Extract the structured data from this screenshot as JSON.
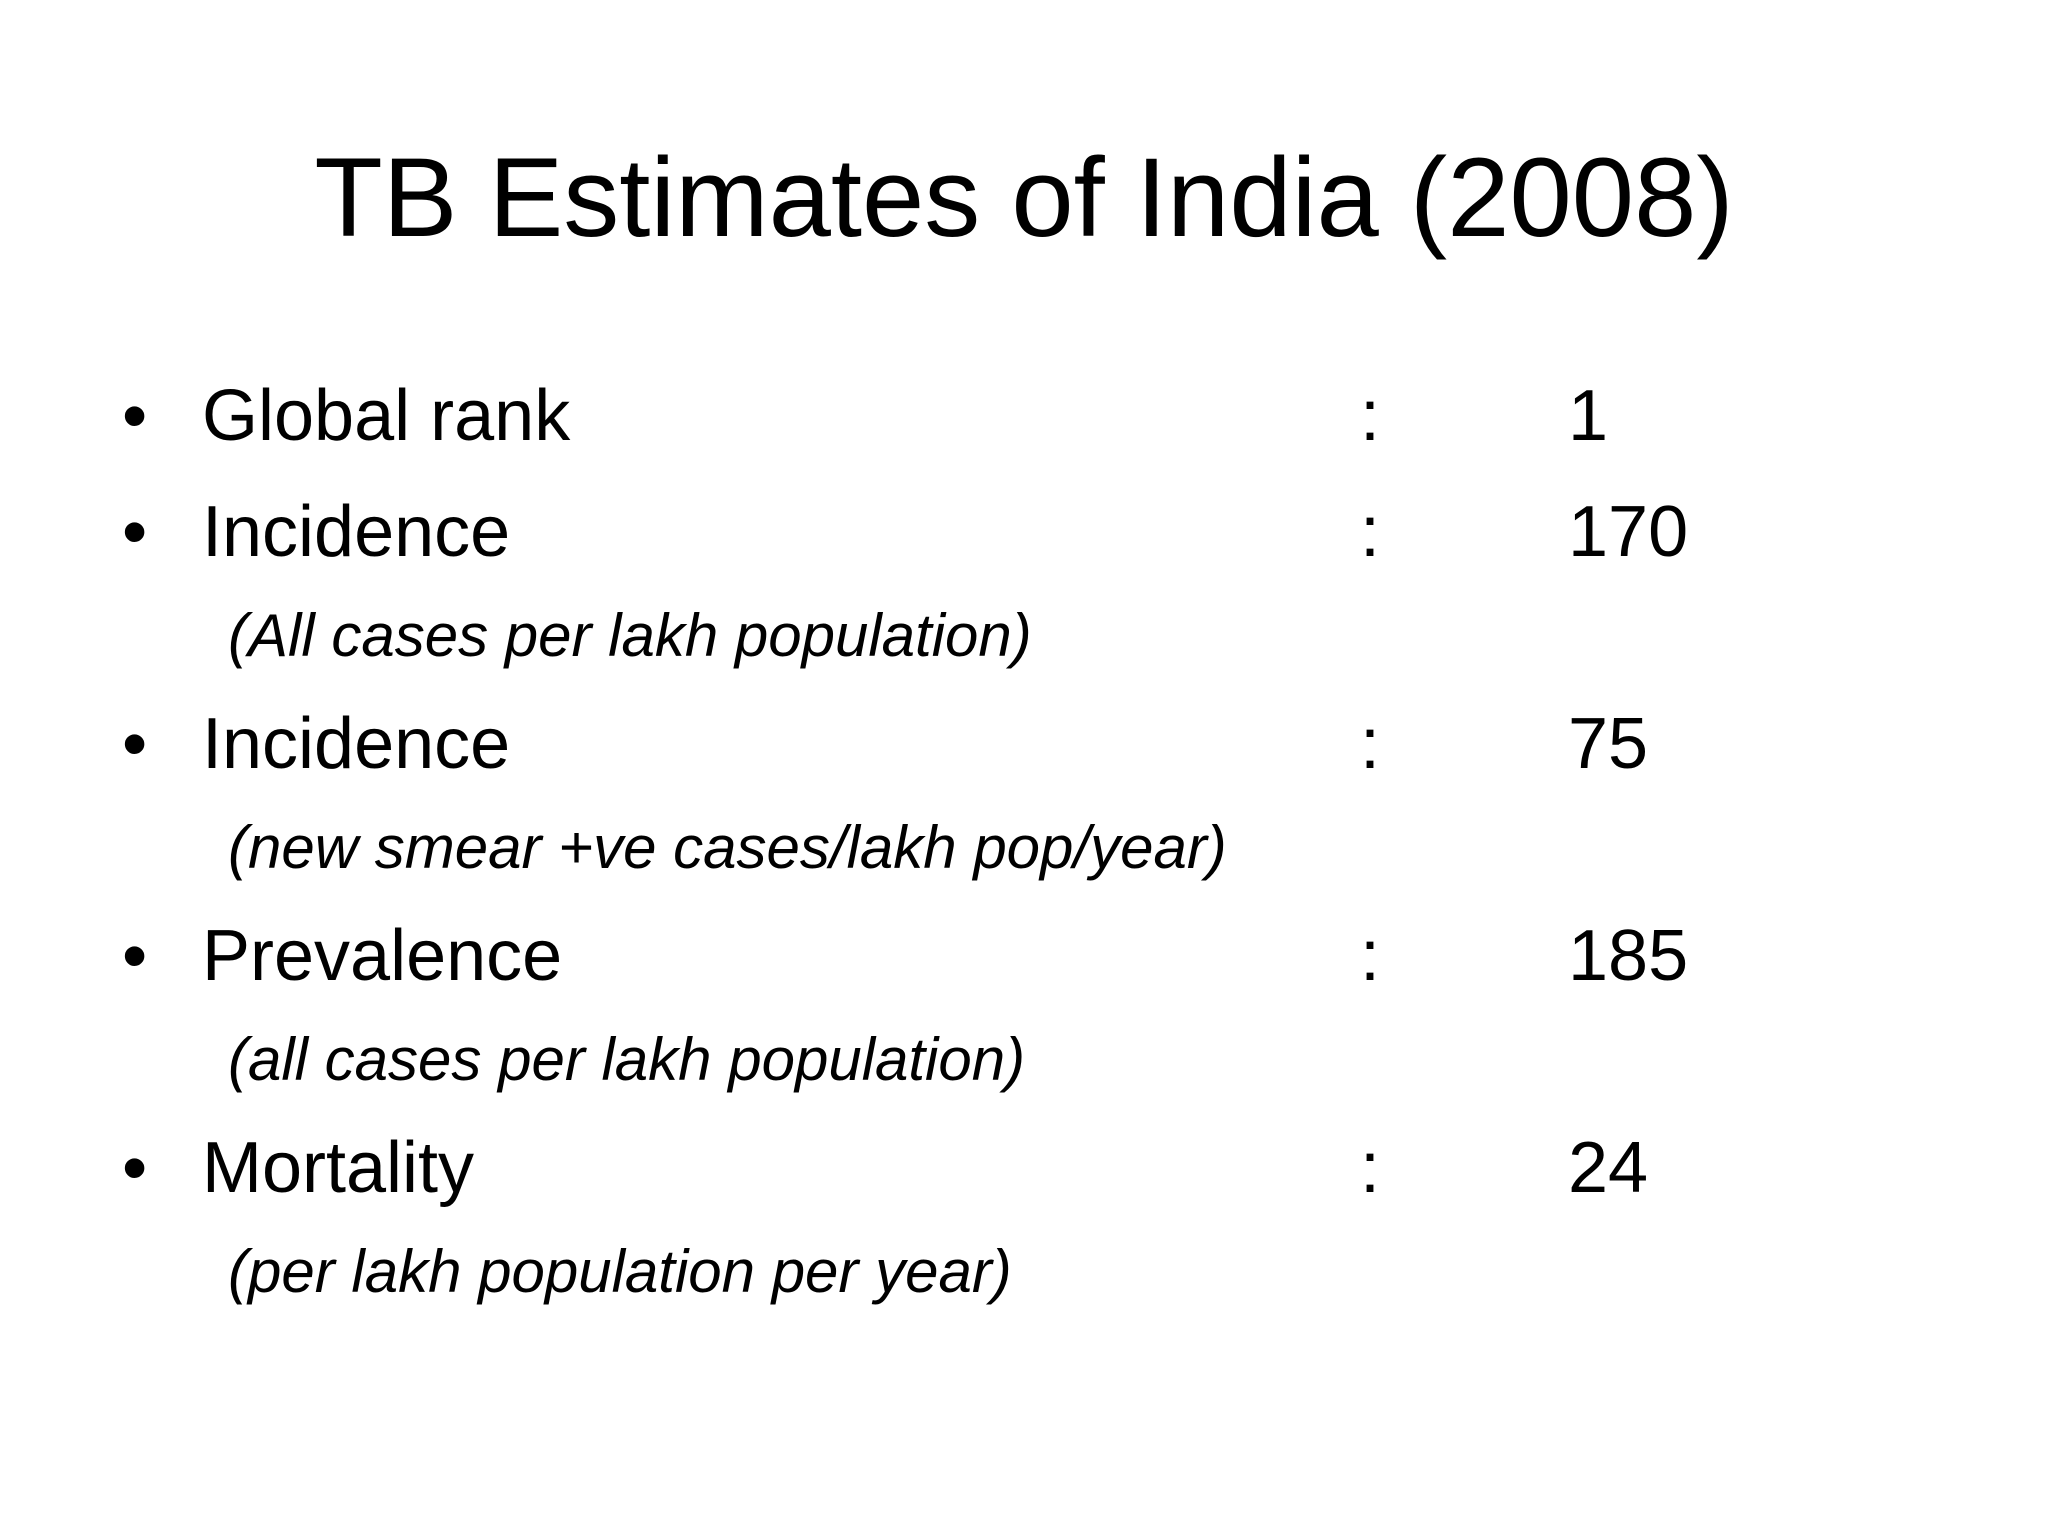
{
  "title": "TB Estimates of India (2008)",
  "bullet_glyph": "•",
  "separator": ":",
  "items": [
    {
      "label": "Global rank",
      "value": "1",
      "note": ""
    },
    {
      "label": "Incidence",
      "value": "170",
      "note": "(All cases per lakh population)"
    },
    {
      "label": "Incidence",
      "value": "75",
      "note": "(new smear +ve cases/lakh pop/year)"
    },
    {
      "label": "Prevalence",
      "value": "185",
      "note": "(all cases per lakh population)"
    },
    {
      "label": "Mortality",
      "value": "24",
      "note": "(per lakh population per year)"
    }
  ]
}
